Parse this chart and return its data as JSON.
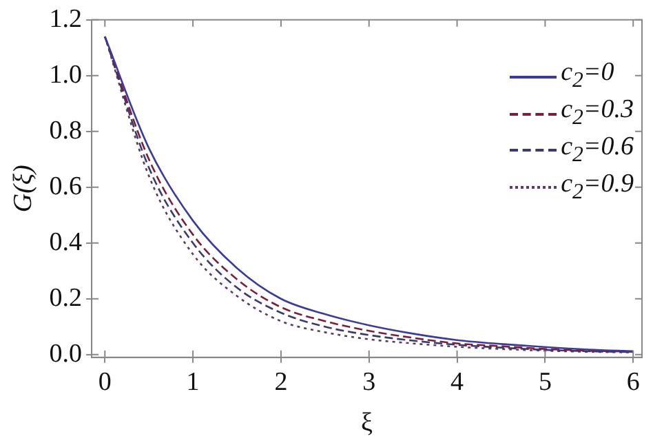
{
  "chart_data": {
    "type": "line",
    "xlabel": "ξ",
    "ylabel": "G(ξ)",
    "x": [
      0,
      0.5,
      1,
      1.5,
      2,
      2.5,
      3,
      3.5,
      4,
      4.5,
      5,
      5.5,
      6
    ],
    "series": [
      {
        "name": "c$_{2}$=0",
        "color": "#3b3b9c",
        "line_style": "solid",
        "values": [
          1.14,
          0.74,
          0.48,
          0.31,
          0.2,
          0.145,
          0.105,
          0.075,
          0.052,
          0.038,
          0.027,
          0.018,
          0.012
        ]
      },
      {
        "name": "c$_{2}$=0.3",
        "color": "#7a1f3a",
        "line_style": "dashed",
        "values": [
          1.14,
          0.7,
          0.43,
          0.27,
          0.17,
          0.12,
          0.085,
          0.06,
          0.04,
          0.03,
          0.02,
          0.014,
          0.01
        ]
      },
      {
        "name": "c$_{2}$=0.6",
        "color": "#3a3a6e",
        "line_style": "dashed",
        "values": [
          1.14,
          0.67,
          0.4,
          0.24,
          0.15,
          0.1,
          0.07,
          0.05,
          0.035,
          0.025,
          0.017,
          0.012,
          0.009
        ]
      },
      {
        "name": "c$_{2}$=0.9",
        "color": "#5a3a5e",
        "line_style": "dotted",
        "values": [
          1.14,
          0.64,
          0.36,
          0.21,
          0.12,
          0.08,
          0.055,
          0.04,
          0.028,
          0.02,
          0.014,
          0.01,
          0.008
        ]
      }
    ],
    "xlim": [
      -0.15,
      6.1
    ],
    "xticks": [
      0,
      1,
      2,
      3,
      4,
      5,
      6
    ],
    "ylim": [
      -0.01,
      1.2
    ],
    "yticks": [
      {
        "value": 0,
        "label": "0.0"
      },
      0.2,
      0.4,
      0.6,
      0.8,
      {
        "value": 1,
        "label": "1.0"
      },
      1.2
    ],
    "legend": "top right",
    "marker": "none",
    "grid": false
  }
}
